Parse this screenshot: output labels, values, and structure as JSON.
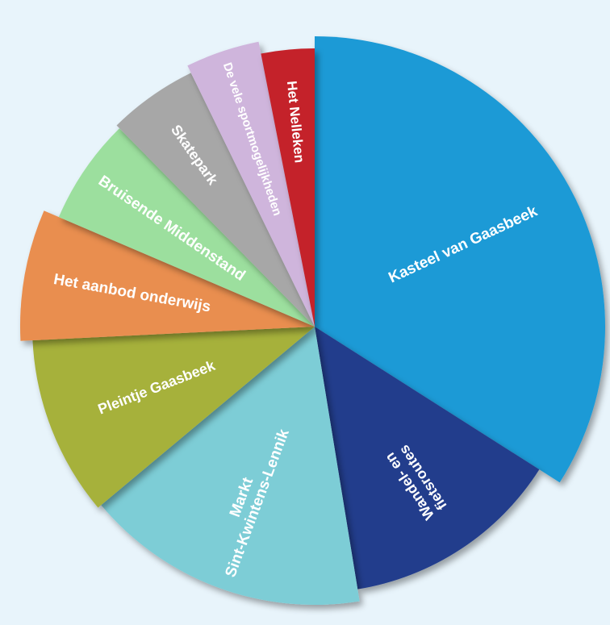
{
  "chart_data": {
    "type": "pie",
    "title": "",
    "slices": [
      {
        "label": "Kasteel van Gaasbeek",
        "value": 33,
        "color": "#1e9ad6"
      },
      {
        "label": "Wandel- en fietsroutes",
        "value": 13,
        "color": "#243d8c"
      },
      {
        "label": "Markt Sint-Kwintens-Lennik",
        "value": 16,
        "color": "#7dcdd6"
      },
      {
        "label": "Pleintje Gaasbeek",
        "value": 10,
        "color": "#a6b13a"
      },
      {
        "label": "Het aanbod onderwijs",
        "value": 7,
        "color": "#e98e50"
      },
      {
        "label": "Bruisende Middenstand",
        "value": 6,
        "color": "#9cdf9e"
      },
      {
        "label": "Skatepark",
        "value": 5,
        "color": "#a7a7a7"
      },
      {
        "label": "De vele sportmogelijkheden",
        "value": 4,
        "color": "#cfb5dc"
      },
      {
        "label": "Het Nelleken",
        "value": 3,
        "color": "#c4232a"
      }
    ]
  }
}
